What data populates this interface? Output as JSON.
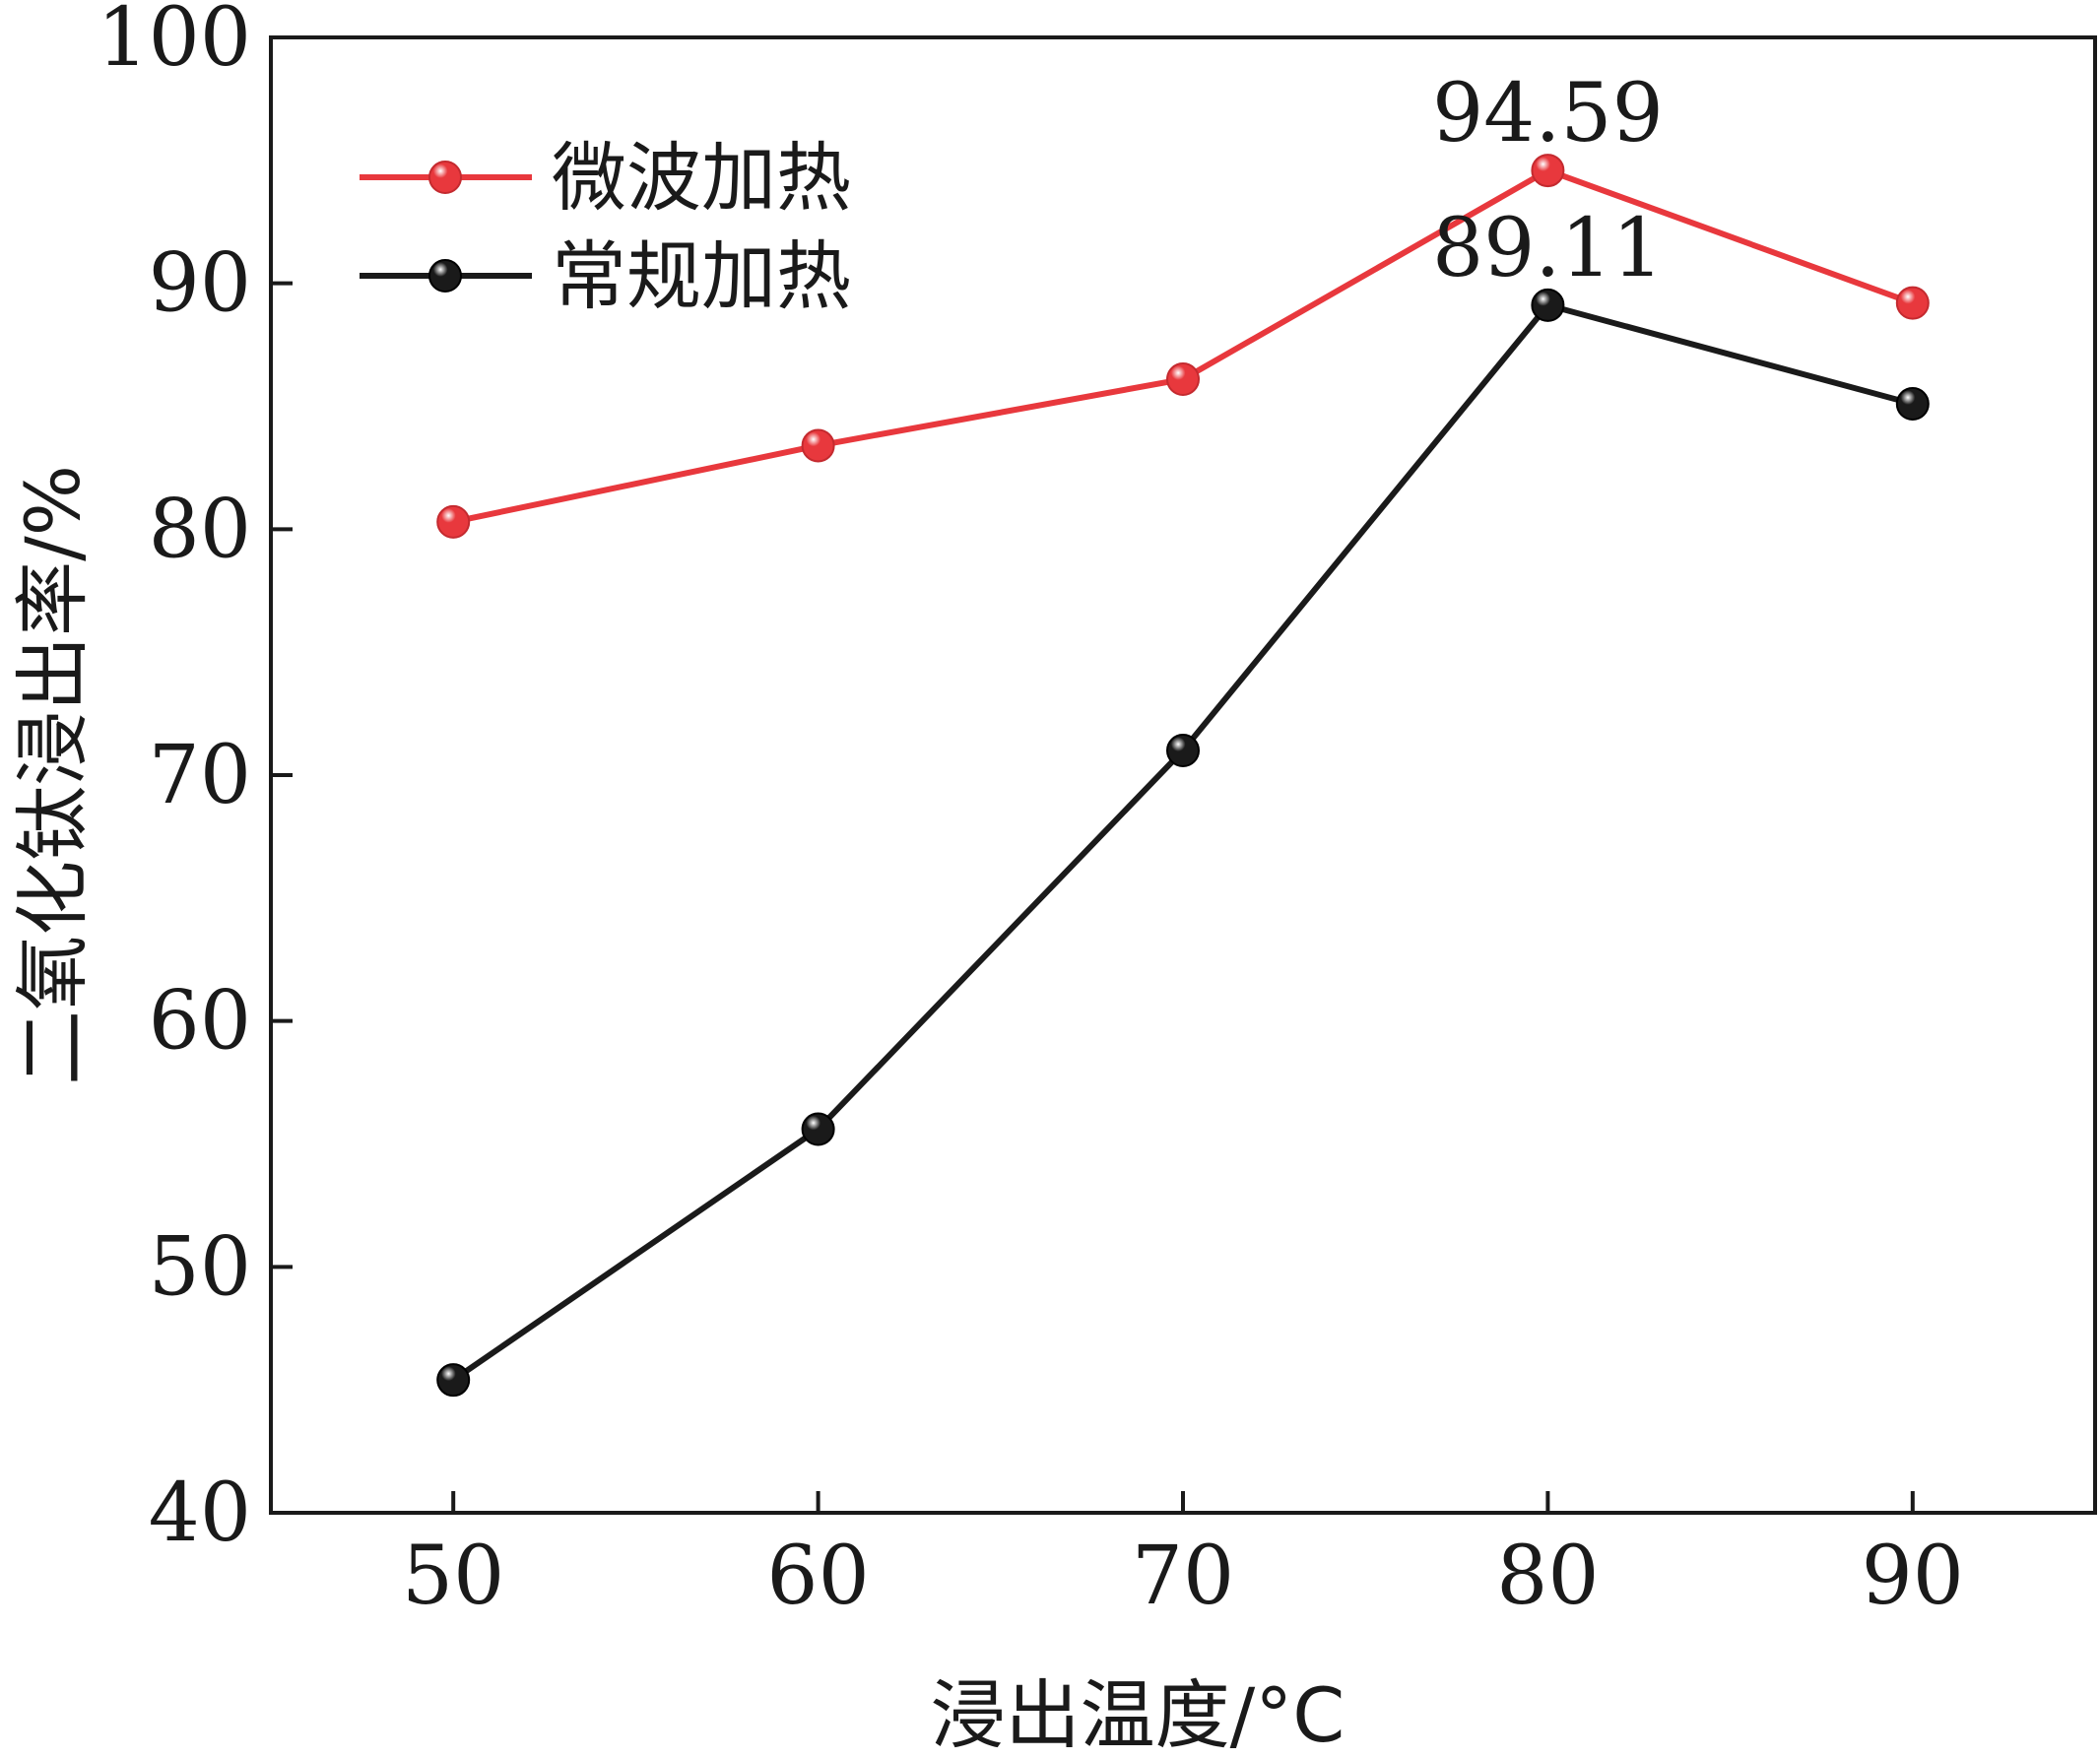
{
  "chart_data": {
    "type": "line",
    "xlabel": "浸出温度/°C",
    "ylabel": "二氧化钛浸出率/%",
    "x": [
      50,
      60,
      70,
      80,
      90
    ],
    "xlim": [
      45,
      95
    ],
    "ylim": [
      40,
      100
    ],
    "xticks": [
      50,
      60,
      70,
      80,
      90
    ],
    "yticks": [
      40,
      50,
      60,
      70,
      80,
      90,
      100
    ],
    "grid": false,
    "legend_position": "top-left",
    "series": [
      {
        "name": "微波加热",
        "color": "#e8383d",
        "values": [
          80.3,
          83.4,
          86.1,
          94.59,
          89.2
        ]
      },
      {
        "name": "常规加热",
        "color": "#1a1a1a",
        "values": [
          45.4,
          55.6,
          71.0,
          89.11,
          85.1
        ]
      }
    ],
    "annotations": [
      {
        "text": "94.59",
        "x": 80,
        "y": 94.59
      },
      {
        "text": "89.11",
        "x": 80,
        "y": 89.11
      }
    ]
  }
}
